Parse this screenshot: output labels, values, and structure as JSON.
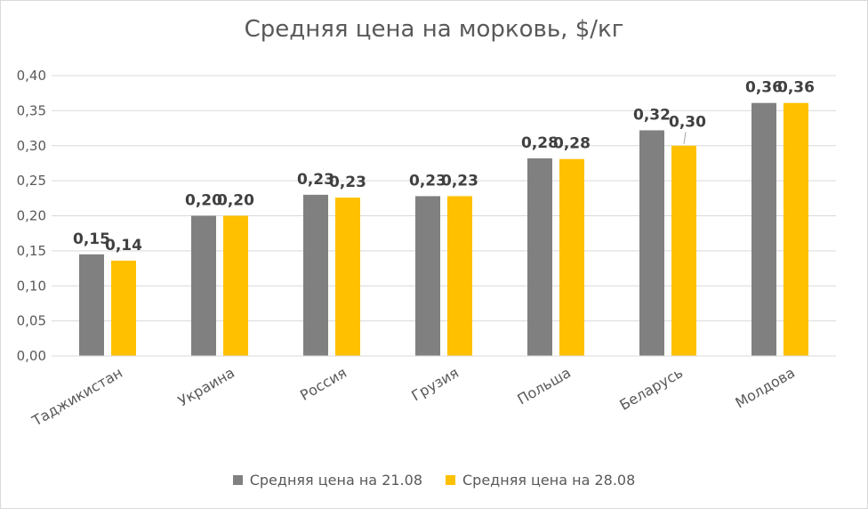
{
  "chart_data": {
    "type": "bar",
    "title": "Средняя цена на морковь, $/кг",
    "categories": [
      "Таджикистан",
      "Украина",
      "Россия",
      "Грузия",
      "Польша",
      "Беларусь",
      "Молдова"
    ],
    "series": [
      {
        "name": "Средняя цена на 21.08",
        "color": "#808080",
        "values": [
          0.145,
          0.2,
          0.23,
          0.228,
          0.282,
          0.322,
          0.361
        ],
        "labels": [
          "0,15",
          "0,20",
          "0,23",
          "0,23",
          "0,28",
          "0,32",
          "0,36"
        ]
      },
      {
        "name": "Средняя цена на 28.08",
        "color": "#ffc000",
        "values": [
          0.136,
          0.2,
          0.226,
          0.228,
          0.281,
          0.3,
          0.361
        ],
        "labels": [
          "0,14",
          "0,20",
          "0,23",
          "0,23",
          "0,28",
          "0,30",
          "0,36"
        ]
      }
    ],
    "ylim": [
      0,
      0.4
    ],
    "yticks": [
      "0,00",
      "0,05",
      "0,10",
      "0,15",
      "0,20",
      "0,25",
      "0,30",
      "0,35",
      "0,40"
    ],
    "grid": true,
    "legend": "bottom"
  }
}
